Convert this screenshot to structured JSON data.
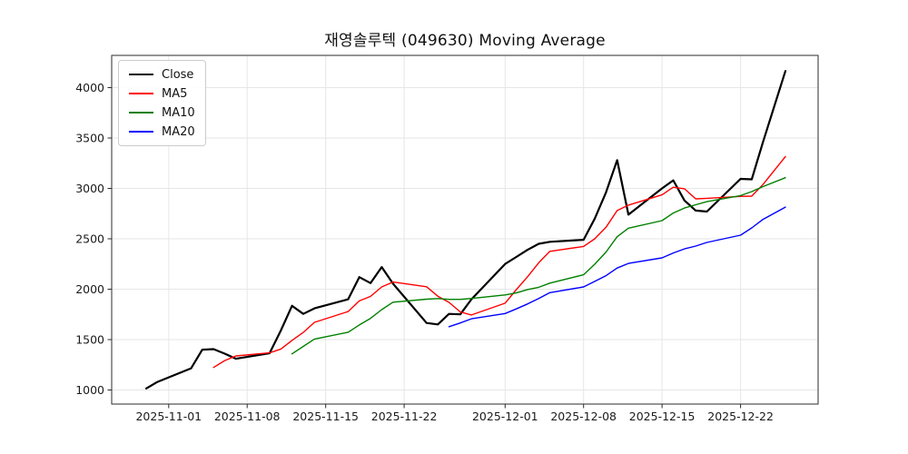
{
  "figure": {
    "background": "#ffffff"
  },
  "chart_data": {
    "type": "line",
    "title": "재영솔루텍 (049630) Moving Average",
    "x": [
      "2025-10-30",
      "2025-10-31",
      "2025-11-03",
      "2025-11-04",
      "2025-11-05",
      "2025-11-06",
      "2025-11-07",
      "2025-11-10",
      "2025-11-11",
      "2025-11-12",
      "2025-11-13",
      "2025-11-14",
      "2025-11-17",
      "2025-11-18",
      "2025-11-19",
      "2025-11-20",
      "2025-11-21",
      "2025-11-24",
      "2025-11-25",
      "2025-11-26",
      "2025-11-27",
      "2025-11-28",
      "2025-12-01",
      "2025-12-02",
      "2025-12-03",
      "2025-12-04",
      "2025-12-05",
      "2025-12-08",
      "2025-12-09",
      "2025-12-10",
      "2025-12-11",
      "2025-12-12",
      "2025-12-15",
      "2025-12-16",
      "2025-12-17",
      "2025-12-18",
      "2025-12-19",
      "2025-12-22",
      "2025-12-23",
      "2025-12-24",
      "2025-12-26"
    ],
    "series": [
      {
        "name": "Close",
        "color": "#000000",
        "line_width": 2.2,
        "values": [
          1015,
          1080,
          1215,
          1400,
          1405,
          1360,
          1310,
          1365,
          1590,
          1835,
          1755,
          1810,
          1900,
          2120,
          2060,
          2220,
          2055,
          1665,
          1650,
          1755,
          1750,
          1900,
          2250,
          2320,
          2390,
          2450,
          2470,
          2490,
          2700,
          2960,
          3280,
          2740,
          3000,
          3080,
          2880,
          2780,
          2770,
          3095,
          3090,
          3460,
          4165
        ]
      },
      {
        "name": "MA5",
        "color": "#ff0000",
        "line_width": 1.4,
        "values": [
          null,
          null,
          null,
          null,
          1223,
          1292,
          1338,
          1368,
          1406,
          1492,
          1571,
          1671,
          1778,
          1884,
          1929,
          2022,
          2071,
          2024,
          1930,
          1869,
          1775,
          1744,
          1861,
          1995,
          2122,
          2262,
          2376,
          2424,
          2500,
          2614,
          2780,
          2834,
          2936,
          3012,
          2996,
          2896,
          2902,
          2921,
          2923,
          3039,
          3316
        ]
      },
      {
        "name": "MA10",
        "color": "#008000",
        "line_width": 1.4,
        "values": [
          null,
          null,
          null,
          null,
          null,
          null,
          null,
          null,
          null,
          1358,
          1432,
          1505,
          1573,
          1645,
          1711,
          1797,
          1871,
          1901,
          1907,
          1899,
          1899,
          1908,
          1943,
          1963,
          1996,
          2019,
          2060,
          2143,
          2248,
          2368,
          2521,
          2605,
          2680,
          2756,
          2805,
          2838,
          2868,
          2929,
          2968,
          3018,
          3106
        ]
      },
      {
        "name": "MA20",
        "color": "#0000ff",
        "line_width": 1.4,
        "values": [
          null,
          null,
          null,
          null,
          null,
          null,
          null,
          null,
          null,
          null,
          null,
          null,
          null,
          null,
          null,
          null,
          null,
          null,
          null,
          1628,
          1665,
          1706,
          1758,
          1804,
          1853,
          1908,
          1966,
          2022,
          2077,
          2134,
          2210,
          2256,
          2311,
          2359,
          2400,
          2428,
          2464,
          2536,
          2608,
          2693,
          2814
        ]
      }
    ],
    "xticks": [
      "2025-11-01",
      "2025-11-08",
      "2025-11-15",
      "2025-11-22",
      "2025-12-01",
      "2025-12-08",
      "2025-12-15",
      "2025-12-22"
    ],
    "yticks": [
      1000,
      1500,
      2000,
      2500,
      3000,
      3500,
      4000
    ],
    "xlim": [
      "2025-10-26T22:00:00Z",
      "2025-12-28T22:00:00Z"
    ],
    "ylim": [
      860,
      4320
    ],
    "grid": true,
    "grid_color": "#e6e6e6",
    "axis_color": "#2b2b2b",
    "tick_label_color": "#1a1a1a",
    "tick_font_size": 12.5,
    "legend": {
      "position": "upper-left",
      "entries": [
        "Close",
        "MA5",
        "MA10",
        "MA20"
      ]
    }
  }
}
